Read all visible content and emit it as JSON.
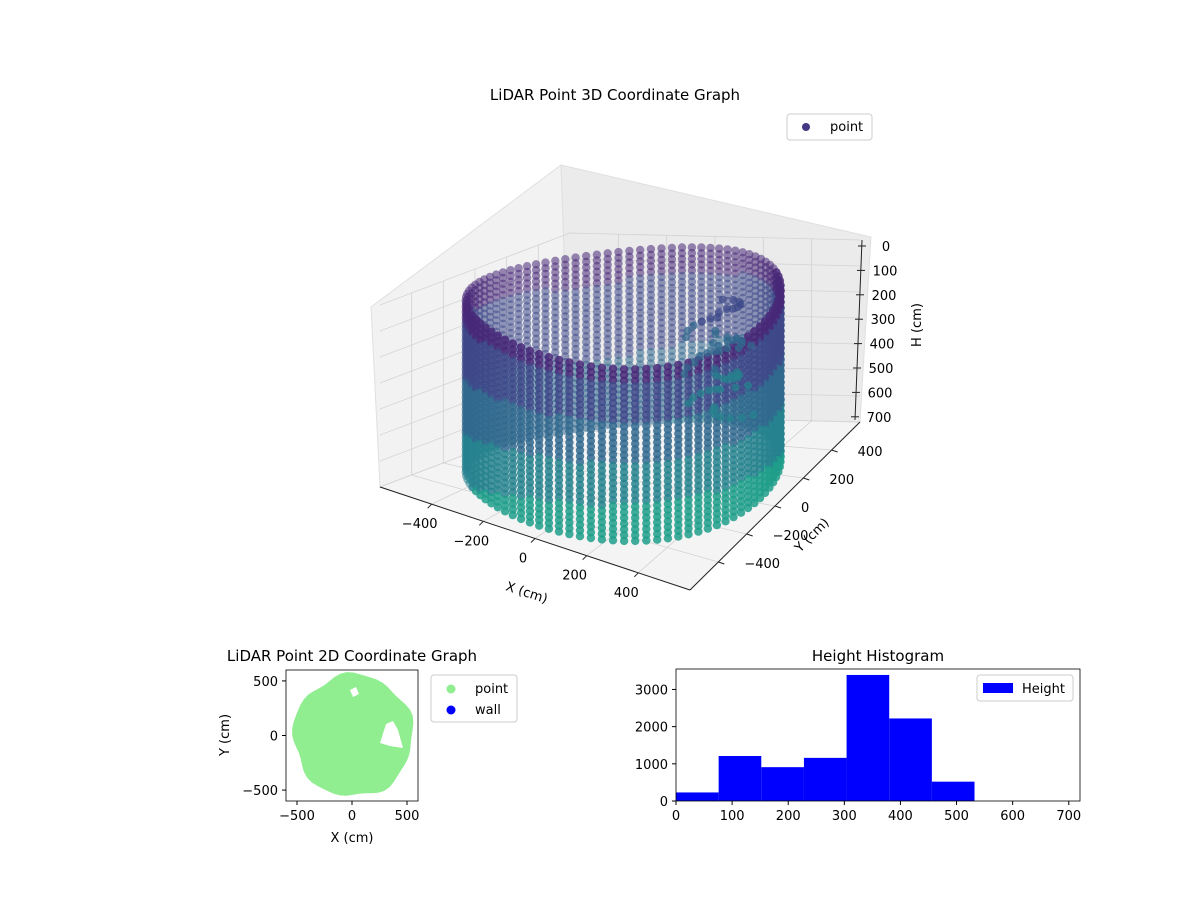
{
  "chart_data": [
    {
      "type": "scatter",
      "projection": "3d",
      "title": "LiDAR Point 3D Coordinate Graph",
      "xlabel": "X (cm)",
      "ylabel": "Y (cm)",
      "zlabel": "H (cm)",
      "xlim": [
        -600,
        600
      ],
      "ylim": [
        -600,
        600
      ],
      "zlim": [
        0,
        700
      ],
      "z_inverted": true,
      "xticks": [
        "−400",
        "−200",
        "0",
        "200",
        "400"
      ],
      "yticks": [
        "−400",
        "−200",
        "0",
        "200",
        "400"
      ],
      "zticks": [
        "0",
        "100",
        "200",
        "300",
        "400",
        "500",
        "600",
        "700"
      ],
      "legend": {
        "entries": [
          "point"
        ],
        "placement": "top-right"
      },
      "colormap": "viridis",
      "grid": true,
      "description_of_points": {
        "shape": "ring of vertical point columns",
        "ring_radius": 540,
        "height_range": [
          0,
          700
        ],
        "inner_obstacle": {
          "x": 380,
          "y": 120
        }
      }
    },
    {
      "type": "scatter",
      "title": "LiDAR Point 2D Coordinate Graph",
      "xlabel": "X (cm)",
      "ylabel": "Y (cm)",
      "xlim": [
        -600,
        600
      ],
      "ylim": [
        -600,
        600
      ],
      "xticks": [
        "−500",
        "0",
        "500"
      ],
      "yticks": [
        "−500",
        "0",
        "500"
      ],
      "legend": {
        "entries": [
          "point",
          "wall"
        ],
        "placement": "outside-right"
      },
      "series": [
        {
          "name": "point",
          "color": "#90ee90",
          "filled_disc_radius": 560
        },
        {
          "name": "wall",
          "color": "#0000ff"
        }
      ]
    },
    {
      "type": "bar",
      "subtype": "histogram",
      "title": "Height Histogram",
      "xlim": [
        0,
        720
      ],
      "ylim": [
        0,
        3550
      ],
      "xticks": [
        "0",
        "100",
        "200",
        "300",
        "400",
        "500",
        "600",
        "700"
      ],
      "yticks": [
        "0",
        "1000",
        "2000",
        "3000"
      ],
      "legend": {
        "entries": [
          "Height"
        ],
        "placement": "top-right"
      },
      "color": "#0000ff",
      "bin_edges": [
        0,
        76,
        152,
        228,
        304,
        380,
        456,
        532,
        608,
        684,
        720
      ],
      "counts": [
        230,
        1210,
        910,
        1160,
        3390,
        2220,
        520,
        0,
        0,
        0
      ]
    }
  ]
}
